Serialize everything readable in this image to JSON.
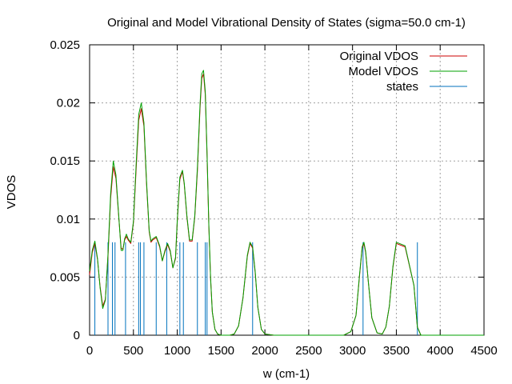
{
  "chart_data": {
    "type": "line",
    "title": "Original and Model Vibrational Density of States (sigma=50.0 cm-1)",
    "xlabel": "w (cm-1)",
    "ylabel": "VDOS",
    "xlim": [
      0,
      4500
    ],
    "ylim": [
      0,
      0.025
    ],
    "x_ticks": [
      0,
      500,
      1000,
      1500,
      2000,
      2500,
      3000,
      3500,
      4000,
      4500
    ],
    "x_tick_labels": [
      "0",
      "500",
      "1000",
      "1500",
      "2000",
      "2500",
      "3000",
      "3500",
      "4000",
      "4500"
    ],
    "y_ticks": [
      0,
      0.005,
      0.01,
      0.015,
      0.02,
      0.025
    ],
    "y_tick_labels": [
      "0",
      "0.005",
      "0.01",
      "0.015",
      "0.02",
      "0.025"
    ],
    "grid": true,
    "legend_position": "top-right",
    "colors": {
      "original": "#cc0000",
      "model": "#00a000",
      "states": "#0072bd"
    },
    "series": [
      {
        "name": "Original VDOS",
        "color": "#cc0000",
        "x": [
          0,
          30,
          60,
          90,
          120,
          150,
          180,
          210,
          240,
          270,
          300,
          330,
          360,
          380,
          400,
          420,
          440,
          470,
          500,
          530,
          560,
          590,
          620,
          650,
          680,
          700,
          720,
          760,
          800,
          830,
          860,
          890,
          920,
          950,
          980,
          1000,
          1030,
          1060,
          1080,
          1110,
          1140,
          1170,
          1200,
          1230,
          1260,
          1280,
          1300,
          1320,
          1340,
          1360,
          1380,
          1400,
          1430,
          1460,
          1500,
          1550,
          1600,
          1650,
          1700,
          1750,
          1800,
          1830,
          1860,
          1890,
          1920,
          1960,
          2000,
          2100,
          2500,
          2900,
          2980,
          3040,
          3080,
          3110,
          3130,
          3150,
          3180,
          3220,
          3280,
          3340,
          3380,
          3420,
          3460,
          3500,
          3600,
          3700,
          3740,
          3780,
          3820,
          3870,
          3930,
          4000,
          4500
        ],
        "values": [
          0.0052,
          0.0071,
          0.0079,
          0.0065,
          0.0042,
          0.0025,
          0.0031,
          0.0068,
          0.0118,
          0.0145,
          0.0135,
          0.0104,
          0.0075,
          0.0074,
          0.0082,
          0.0085,
          0.0082,
          0.0079,
          0.0097,
          0.0142,
          0.0185,
          0.0195,
          0.018,
          0.013,
          0.0089,
          0.008,
          0.0082,
          0.0084,
          0.0076,
          0.0064,
          0.0072,
          0.0078,
          0.0072,
          0.0058,
          0.0066,
          0.0098,
          0.0134,
          0.0141,
          0.013,
          0.0102,
          0.0081,
          0.0081,
          0.0102,
          0.0142,
          0.0195,
          0.0221,
          0.0225,
          0.0207,
          0.0155,
          0.0095,
          0.0049,
          0.002,
          0.0005,
          0.0001,
          0.0,
          0.0,
          0.0,
          0.0001,
          0.0008,
          0.0032,
          0.0068,
          0.0079,
          0.0075,
          0.0053,
          0.0024,
          0.0005,
          0.0001,
          0.0,
          0.0,
          0.0,
          0.0003,
          0.0017,
          0.0051,
          0.0075,
          0.0079,
          0.0071,
          0.0046,
          0.0015,
          0.0002,
          0.0001,
          0.0007,
          0.0025,
          0.0058,
          0.0079,
          0.0076,
          0.0043,
          0.0007,
          0.0,
          0.0,
          0.0,
          0.0,
          0.0,
          0.0
        ]
      },
      {
        "name": "Model VDOS",
        "color": "#00a000",
        "x": [
          0,
          30,
          60,
          90,
          120,
          150,
          180,
          210,
          240,
          270,
          300,
          330,
          360,
          380,
          400,
          420,
          440,
          470,
          500,
          530,
          560,
          590,
          620,
          650,
          680,
          700,
          720,
          760,
          800,
          830,
          860,
          890,
          920,
          950,
          980,
          1000,
          1030,
          1060,
          1080,
          1110,
          1140,
          1170,
          1200,
          1230,
          1260,
          1280,
          1300,
          1320,
          1340,
          1360,
          1380,
          1400,
          1430,
          1460,
          1500,
          1550,
          1600,
          1650,
          1700,
          1750,
          1800,
          1830,
          1860,
          1890,
          1920,
          1960,
          2000,
          2100,
          2500,
          2900,
          2980,
          3040,
          3080,
          3110,
          3130,
          3150,
          3180,
          3220,
          3280,
          3340,
          3380,
          3420,
          3460,
          3500,
          3600,
          3700,
          3740,
          3780,
          3820,
          3870,
          3930,
          4000,
          4500
        ],
        "values": [
          0.0055,
          0.0073,
          0.0081,
          0.0066,
          0.0041,
          0.0023,
          0.003,
          0.007,
          0.0122,
          0.015,
          0.0138,
          0.0105,
          0.0073,
          0.0073,
          0.0083,
          0.0087,
          0.0083,
          0.008,
          0.0098,
          0.0146,
          0.019,
          0.02,
          0.0183,
          0.0132,
          0.009,
          0.0081,
          0.0083,
          0.0085,
          0.0077,
          0.0064,
          0.0073,
          0.0079,
          0.0073,
          0.0058,
          0.0067,
          0.0099,
          0.0136,
          0.0142,
          0.0131,
          0.0103,
          0.0082,
          0.0082,
          0.0103,
          0.0145,
          0.0198,
          0.0225,
          0.0228,
          0.021,
          0.0157,
          0.0096,
          0.005,
          0.002,
          0.0005,
          0.0001,
          0.0,
          0.0,
          0.0,
          0.0001,
          0.0008,
          0.0032,
          0.0069,
          0.008,
          0.0076,
          0.0054,
          0.0024,
          0.0005,
          0.0001,
          0.0,
          0.0,
          0.0,
          0.0003,
          0.0017,
          0.0052,
          0.0076,
          0.008,
          0.0072,
          0.0046,
          0.0015,
          0.0002,
          0.0001,
          0.0007,
          0.0025,
          0.0059,
          0.008,
          0.0077,
          0.0043,
          0.0007,
          0.0,
          0.0,
          0.0,
          0.0,
          0.0,
          0.0
        ]
      },
      {
        "name": "states",
        "color": "#0072bd",
        "type": "impulses",
        "x": [
          60,
          210,
          260,
          290,
          410,
          560,
          580,
          620,
          760,
          880,
          1030,
          1070,
          1230,
          1320,
          1340,
          1860,
          3120,
          3740
        ],
        "values": [
          0.008,
          0.008,
          0.008,
          0.008,
          0.008,
          0.008,
          0.008,
          0.008,
          0.008,
          0.008,
          0.008,
          0.008,
          0.008,
          0.008,
          0.008,
          0.008,
          0.008,
          0.008
        ]
      }
    ]
  }
}
